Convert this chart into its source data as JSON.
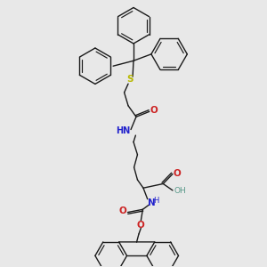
{
  "bg_color": "#e8e8e8",
  "bond_color": "#1a1a1a",
  "bond_lw": 1.0,
  "ring_lw": 1.0,
  "S_color": "#b8b800",
  "N_color": "#2222cc",
  "O_color": "#cc2222",
  "OH_color": "#5a9a8a",
  "figsize": [
    3.0,
    3.0
  ],
  "dpi": 100,
  "xlim": [
    0.0,
    1.0
  ],
  "ylim": [
    0.0,
    1.0
  ]
}
